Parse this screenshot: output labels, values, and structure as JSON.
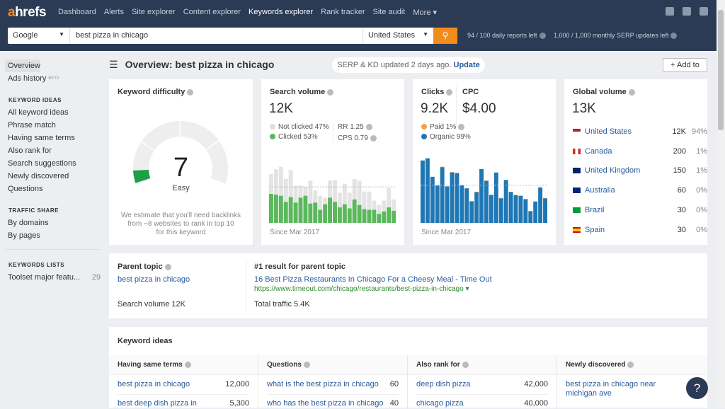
{
  "brand": {
    "logo_a": "a",
    "logo_rest": "hrefs",
    "accent": "#f28c1c",
    "navy": "#2b3a55"
  },
  "nav": [
    {
      "label": "Dashboard"
    },
    {
      "label": "Alerts"
    },
    {
      "label": "Site explorer"
    },
    {
      "label": "Content explorer"
    },
    {
      "label": "Keywords explorer",
      "active": true
    },
    {
      "label": "Rank tracker"
    },
    {
      "label": "Site audit"
    },
    {
      "label": "More ▾"
    }
  ],
  "topicons": [
    "bell-icon",
    "tablet-icon",
    "user-icon"
  ],
  "search": {
    "engine": "Google",
    "query": "best pizza in chicago",
    "country": "United States",
    "daily": "94 / 100 daily reports left",
    "monthly": "1,000 / 1,000 monthly SERP updates left"
  },
  "sidebar": {
    "overview": "Overview",
    "ads": "Ads history",
    "beta": "BETA",
    "kw_header": "KEYWORD IDEAS",
    "kw_items": [
      "All keyword ideas",
      "Phrase match",
      "Having same terms",
      "Also rank for",
      "Search suggestions",
      "Newly discovered",
      "Questions"
    ],
    "ts_header": "TRAFFIC SHARE",
    "ts_items": [
      "By domains",
      "By pages"
    ],
    "kl_header": "KEYWORDS LISTS",
    "list_name": "Toolset major featu...",
    "list_count": "29"
  },
  "header": {
    "title": "Overview: best pizza in chicago",
    "update_text": "SERP & KD updated 2 days ago.",
    "update_link": "Update",
    "add_to": "Add to"
  },
  "kd": {
    "title": "Keyword difficulty",
    "value": "7",
    "level": "Easy",
    "score": 7,
    "note1": "We estimate that you'll need backlinks",
    "note2": "from ~8 websites to rank in top 10",
    "note3": "for this keyword"
  },
  "sv": {
    "title": "Search volume",
    "value": "12K",
    "not_clicked": "Not clicked 47%",
    "clicked": "Clicked 53%",
    "rr": "RR 1.25",
    "cps": "CPS 0.79",
    "since": "Since Mar 2017"
  },
  "clicks": {
    "title": "Clicks",
    "value": "9.2K",
    "cpc_title": "CPC",
    "cpc": "$4.00",
    "paid": "Paid 1%",
    "organic": "Organic 99%",
    "since": "Since Mar 2017"
  },
  "gv": {
    "title": "Global volume",
    "value": "13K",
    "rows": [
      {
        "country": "United States",
        "vol": "12K",
        "pct": "94%",
        "flag": "us"
      },
      {
        "country": "Canada",
        "vol": "200",
        "pct": "1%",
        "flag": "ca"
      },
      {
        "country": "United Kingdom",
        "vol": "150",
        "pct": "1%",
        "flag": "uk"
      },
      {
        "country": "Australia",
        "vol": "60",
        "pct": "0%",
        "flag": "au"
      },
      {
        "country": "Brazil",
        "vol": "30",
        "pct": "0%",
        "flag": "br"
      },
      {
        "country": "Spain",
        "vol": "30",
        "pct": "0%",
        "flag": "es"
      }
    ]
  },
  "parent": {
    "title": "Parent topic",
    "topic": "best pizza in chicago",
    "sv": "Search volume 12K",
    "result_title": "#1 result for parent topic",
    "result_link": "16 Best Pizza Restaurants In Chicago For a Cheesy Meal - Time Out",
    "result_url": "https://www.timeout.com/chicago/restaurants/best-pizza-in-chicago ▾",
    "traffic": "Total traffic 5.4K"
  },
  "ideas": {
    "title": "Keyword ideas",
    "columns": [
      {
        "header": "Having same terms",
        "rows": [
          {
            "kw": "best pizza in chicago",
            "v": "12,000"
          },
          {
            "kw": "best deep dish pizza in",
            "v": "5,300"
          }
        ]
      },
      {
        "header": "Questions",
        "rows": [
          {
            "kw": "what is the best pizza in chicago",
            "v": "60"
          },
          {
            "kw": "who has the best pizza in chicago",
            "v": "40"
          }
        ]
      },
      {
        "header": "Also rank for",
        "rows": [
          {
            "kw": "deep dish pizza",
            "v": "42,000"
          },
          {
            "kw": "chicago pizza",
            "v": "40,000"
          }
        ]
      },
      {
        "header": "Newly discovered",
        "rows": [
          {
            "kw": "best pizza in chicago near michigan ave",
            "v": ""
          }
        ]
      }
    ]
  },
  "help_button": "?",
  "chart_data": [
    {
      "type": "bar",
      "name": "search-volume-history",
      "stacked": true,
      "colors": {
        "total": "#e4e4e4",
        "clicked": "#5cb85c"
      },
      "total": [
        202,
        222,
        232,
        182,
        219,
        154,
        154,
        149,
        175,
        134,
        112,
        104,
        175,
        177,
        125,
        162,
        125,
        182,
        175,
        130,
        130,
        92,
        75,
        92,
        144,
        97
      ],
      "clicked": [
        120,
        117,
        112,
        87,
        107,
        84,
        104,
        112,
        80,
        84,
        54,
        77,
        104,
        87,
        64,
        77,
        60,
        97,
        74,
        57,
        54,
        54,
        37,
        47,
        64,
        50
      ],
      "average_line": 149,
      "ymax": 240
    },
    {
      "type": "bar",
      "name": "clicks-history",
      "stacked": true,
      "colors": {
        "organic": "#1f77b4",
        "paid": "#f5a142"
      },
      "organic": [
        260,
        269,
        192,
        155,
        232,
        152,
        210,
        207,
        157,
        144,
        90,
        128,
        224,
        175,
        117,
        210,
        102,
        179,
        129,
        115,
        112,
        99,
        49,
        89,
        147,
        102
      ],
      "paid": [
        0,
        0,
        0,
        2,
        2,
        0,
        2,
        2,
        0,
        0,
        0,
        2,
        0,
        2,
        0,
        0,
        2,
        0,
        0,
        2,
        2,
        0,
        0,
        0,
        2,
        2
      ],
      "average_line": 157,
      "ymax": 280
    }
  ]
}
